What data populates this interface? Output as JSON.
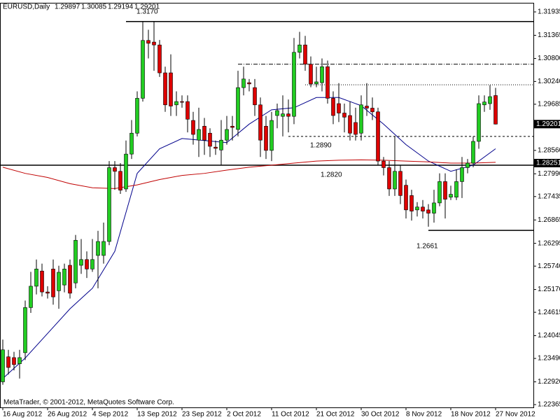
{
  "chart_data": {
    "type": "candlestick",
    "header": {
      "symbol": "EURUSD,Daily",
      "ohlc": [
        1.29897,
        1.30085,
        1.29194,
        1.29201
      ]
    },
    "footer": "MetaTrader, © 2001-2012, MetaQuotes Software Corp.",
    "categories": [
      "16 Aug 2012",
      null,
      null,
      null,
      null,
      null,
      null,
      null,
      "26 Aug 2012",
      null,
      null,
      null,
      null,
      null,
      null,
      null,
      "4 Sep 2012",
      null,
      null,
      null,
      null,
      null,
      null,
      null,
      "13 Sep 2012",
      null,
      null,
      null,
      null,
      null,
      null,
      null,
      "23 Sep 2012",
      null,
      null,
      null,
      null,
      null,
      null,
      null,
      "2 Oct 2012",
      null,
      null,
      null,
      null,
      null,
      null,
      null,
      "11 Oct 2012",
      null,
      null,
      null,
      null,
      null,
      null,
      null,
      "21 Oct 2012",
      null,
      null,
      null,
      null,
      null,
      null,
      null,
      "30 Oct 2012",
      null,
      null,
      null,
      null,
      null,
      null,
      null,
      "8 Nov 2012",
      null,
      null,
      null,
      null,
      null,
      null,
      null,
      "18 Nov 2012",
      null,
      null,
      null,
      null,
      null,
      null,
      null,
      "27 Nov 2012"
    ],
    "open": [
      1.2292,
      1.2353,
      1.2351,
      1.2336,
      1.2363,
      1.2473,
      1.2525,
      1.2562,
      1.2511,
      1.2567,
      1.2514,
      1.2528,
      1.2576,
      1.2533,
      1.2576,
      1.259,
      1.2567,
      1.26,
      1.26,
      1.2634,
      1.2814,
      1.2805,
      1.2762,
      1.2847,
      1.2898,
      1.2983,
      1.3124,
      1.312,
      1.3113,
      1.3045,
      1.3045,
      1.2967,
      1.2975,
      1.2975,
      1.2929,
      1.2881,
      1.2915,
      1.2898,
      1.2864,
      1.2857,
      1.2881,
      1.2915,
      1.2907,
      1.3009,
      1.3021,
      1.3009,
      1.2967,
      1.2915,
      1.2856,
      1.2941,
      1.2939,
      1.2945,
      1.2939,
      1.3095,
      1.3113,
      1.3066,
      1.3018,
      1.3021,
      1.306,
      1.2983,
      1.297,
      1.2947,
      1.2941,
      1.2924,
      1.2898,
      1.2964,
      1.2959,
      1.295,
      1.283,
      1.2814,
      1.2762,
      1.2805,
      1.2771,
      1.2746,
      1.2711,
      1.2718,
      1.2711,
      1.2703,
      1.2728,
      1.278,
      1.2742,
      1.2742,
      1.278,
      1.2814,
      1.2825,
      1.2878,
      1.2967,
      1.297,
      1.29897
    ],
    "high": [
      1.2395,
      1.237,
      1.2365,
      1.237,
      1.249,
      1.256,
      1.259,
      1.258,
      1.2525,
      1.259,
      1.2575,
      1.258,
      1.259,
      1.265,
      1.264,
      1.261,
      1.264,
      1.266,
      1.268,
      1.283,
      1.283,
      1.2825,
      1.288,
      1.293,
      1.3,
      1.317,
      1.315,
      1.317,
      1.3125,
      1.306,
      1.309,
      1.3,
      1.299,
      1.299,
      1.295,
      1.296,
      1.2935,
      1.291,
      1.288,
      1.293,
      1.294,
      1.294,
      1.305,
      1.306,
      1.303,
      1.303,
      1.2985,
      1.294,
      1.295,
      1.297,
      1.299,
      1.298,
      1.313,
      1.3145,
      1.3135,
      1.3085,
      1.306,
      1.308,
      1.3075,
      1.3,
      1.302,
      1.297,
      1.2975,
      1.296,
      1.299,
      1.302,
      1.2985,
      1.296,
      1.284,
      1.283,
      1.289,
      1.282,
      1.2785,
      1.276,
      1.273,
      1.2735,
      1.2725,
      1.276,
      1.28,
      1.28,
      1.277,
      1.281,
      1.284,
      1.2835,
      1.289,
      1.299,
      1.299,
      1.3015,
      1.30085
    ],
    "low": [
      1.2285,
      1.231,
      1.232,
      1.23,
      1.2345,
      1.246,
      1.2505,
      1.25,
      1.2495,
      1.248,
      1.247,
      1.251,
      1.2495,
      1.252,
      1.2555,
      1.2545,
      1.256,
      1.252,
      1.258,
      1.2625,
      1.276,
      1.275,
      1.2755,
      1.2835,
      1.289,
      1.2975,
      1.308,
      1.305,
      1.3035,
      1.295,
      1.294,
      1.294,
      1.296,
      1.29,
      1.287,
      1.284,
      1.2845,
      1.284,
      1.2845,
      1.282,
      1.287,
      1.288,
      1.289,
      1.299,
      1.3,
      1.294,
      1.284,
      1.2835,
      1.283,
      1.291,
      1.289,
      1.29,
      1.292,
      1.308,
      1.305,
      1.301,
      1.301,
      1.3,
      1.297,
      1.292,
      1.2925,
      1.29,
      1.288,
      1.288,
      1.288,
      1.294,
      1.293,
      1.282,
      1.2795,
      1.2745,
      1.2745,
      1.2725,
      1.269,
      1.2685,
      1.2695,
      1.269,
      1.267,
      1.268,
      1.272,
      1.269,
      1.2735,
      1.2735,
      1.274,
      1.28,
      1.2815,
      1.286,
      1.295,
      1.2955,
      1.29194
    ],
    "close": [
      1.237,
      1.2327,
      1.2334,
      1.2351,
      1.2473,
      1.2525,
      1.2567,
      1.2511,
      1.2508,
      1.2499,
      1.2559,
      1.2567,
      1.2508,
      1.2637,
      1.259,
      1.2567,
      1.259,
      1.2634,
      1.2634,
      1.2814,
      1.2805,
      1.2759,
      1.2847,
      1.2898,
      1.2983,
      1.3124,
      1.3117,
      1.3113,
      1.3045,
      1.2967,
      1.2964,
      1.2975,
      1.2974,
      1.2932,
      1.2895,
      1.2907,
      1.2881,
      1.2866,
      1.2861,
      1.2881,
      1.2907,
      1.2912,
      1.3009,
      1.303,
      1.3018,
      1.2967,
      1.2881,
      1.2856,
      1.2929,
      1.2953,
      1.2945,
      1.2939,
      1.3095,
      1.3113,
      1.3066,
      1.3018,
      1.3023,
      1.306,
      1.2983,
      1.2941,
      1.2947,
      1.2937,
      1.2898,
      1.2895,
      1.2967,
      1.2959,
      1.295,
      1.283,
      1.2814,
      1.2762,
      1.2805,
      1.2746,
      1.2711,
      1.2708,
      1.2718,
      1.2708,
      1.2703,
      1.2728,
      1.278,
      1.2737,
      1.2749,
      1.278,
      1.2814,
      1.2825,
      1.2878,
      1.297,
      1.2974,
      1.2987,
      1.29201
    ],
    "up_color": "#22cc22",
    "down_color": "#dd0000",
    "ma": [
      {
        "color": "#00008b",
        "x": [
          0,
          4,
          8,
          12,
          16,
          20,
          24,
          28,
          32,
          36,
          40,
          44,
          48,
          52,
          56,
          60,
          64,
          68,
          72,
          76,
          80,
          84,
          88
        ],
        "values": [
          1.23,
          1.235,
          1.241,
          1.247,
          1.252,
          1.261,
          1.28,
          1.286,
          1.2885,
          1.288,
          1.2875,
          1.292,
          1.2955,
          1.296,
          1.2985,
          1.2985,
          1.2965,
          1.292,
          1.287,
          1.283,
          1.2805,
          1.282,
          1.286
        ]
      },
      {
        "color": "#c00000",
        "x": [
          0,
          4,
          8,
          12,
          16,
          20,
          24,
          28,
          32,
          36,
          40,
          44,
          48,
          52,
          56,
          60,
          64,
          68,
          72,
          76,
          80,
          84,
          88
        ],
        "values": [
          1.2815,
          1.28,
          1.279,
          1.2775,
          1.2765,
          1.2763,
          1.2772,
          1.2785,
          1.2795,
          1.28,
          1.2808,
          1.2815,
          1.282,
          1.2825,
          1.283,
          1.2832,
          1.2833,
          1.2832,
          1.283,
          1.2828,
          1.2825,
          1.2825,
          1.2827
        ]
      }
    ],
    "levels": [
      {
        "value": 1.317,
        "label": "1.3170",
        "from": 22,
        "style": "solid"
      },
      {
        "value": 1.3066,
        "from": 42,
        "style": "dashdot"
      },
      {
        "value": 1.3016,
        "from": 54,
        "style": "dotted"
      },
      {
        "value": 1.289,
        "label": "1.2890",
        "from": 51,
        "style": "dashed"
      },
      {
        "value": 1.282,
        "label": "1.2820",
        "from": 0,
        "style": "solid"
      },
      {
        "value": 1.2661,
        "label": "1.2661",
        "from": 76,
        "style": "solid"
      }
    ],
    "markers": [
      1.29201,
      1.28251
    ],
    "ylim": [
      1.22297,
      1.32157
    ],
    "yticks": [
      1.31935,
      1.31365,
      {
        "value": 1.308,
        "label": "1.30800"
      },
      {
        "value": 1.3024,
        "label": "1.30240"
      },
      1.29685,
      {
        "value": 1.2856,
        "label": "1.28560"
      },
      {
        "value": 1.2799,
        "label": "1.27990"
      },
      1.27435,
      1.26865,
      1.26295,
      {
        "value": 1.2574,
        "label": "1.25740"
      },
      {
        "value": 1.2517,
        "label": "1.25170"
      },
      1.24615,
      1.24045,
      {
        "value": 1.2349,
        "label": "1.23490"
      },
      {
        "value": 1.2292,
        "label": "1.22920"
      },
      1.22365
    ]
  }
}
